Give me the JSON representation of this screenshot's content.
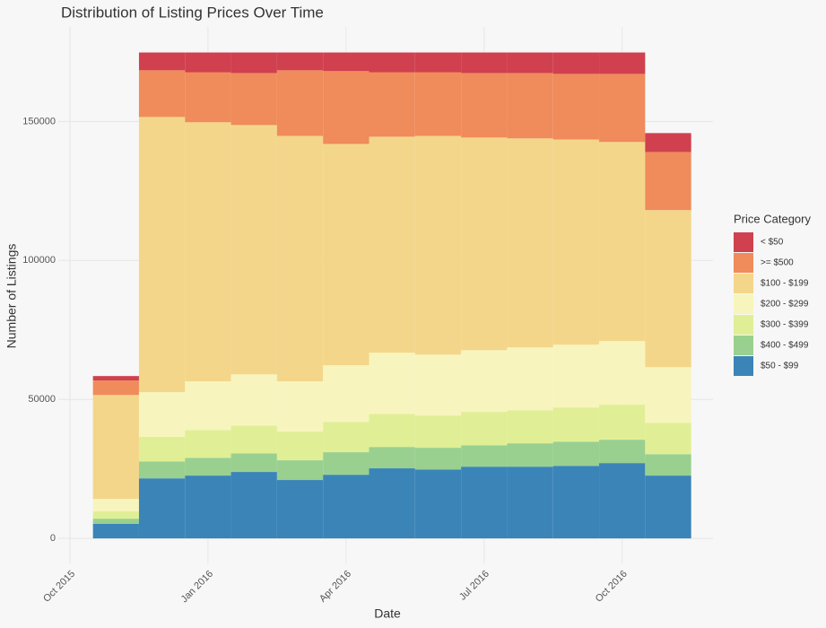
{
  "chart_data": {
    "type": "stacked_bar",
    "title": "Distribution of Listing Prices Over Time",
    "x_label": "Date",
    "y_label": "Number of Listings",
    "legend_title": "Price Category",
    "legend_position": "right",
    "grid": true,
    "x": [
      "2015-11",
      "2015-12",
      "2016-01",
      "2016-02",
      "2016-03",
      "2016-04",
      "2016-05",
      "2016-06",
      "2016-07",
      "2016-08",
      "2016-09",
      "2016-10",
      "2016-11"
    ],
    "xlim": [
      "2015-10",
      "2016-11"
    ],
    "xticks": [
      {
        "value": "2015-10",
        "label": "Oct 2015"
      },
      {
        "value": "2016-01",
        "label": "Jan 2016"
      },
      {
        "value": "2016-04",
        "label": "Apr 2016"
      },
      {
        "value": "2016-07",
        "label": "Jul 2016"
      },
      {
        "value": "2016-10",
        "label": "Oct 2016"
      }
    ],
    "ylim": [
      -9000,
      184000
    ],
    "yticks": [
      0,
      50000,
      100000,
      150000
    ],
    "series": [
      {
        "name": "< $50",
        "color": "#d0404f",
        "values": [
          1600,
          6400,
          7100,
          7400,
          6400,
          6700,
          7100,
          7100,
          7400,
          7400,
          7700,
          7700,
          6800
        ]
      },
      {
        "name": ">= $500",
        "color": "#f08b5b",
        "values": [
          5200,
          16800,
          18000,
          18700,
          23600,
          26200,
          23200,
          22900,
          23200,
          23500,
          23600,
          24500,
          20900
        ]
      },
      {
        "name": "$100 - $199",
        "color": "#f4d68a",
        "values": [
          37400,
          99000,
          93200,
          89700,
          88300,
          79600,
          77700,
          78700,
          76500,
          75200,
          73800,
          71600,
          56500
        ]
      },
      {
        "name": "$200 - $299",
        "color": "#f7f5bd",
        "values": [
          4500,
          16100,
          17500,
          18400,
          18100,
          20400,
          22000,
          21900,
          22200,
          22600,
          22600,
          22900,
          20000
        ]
      },
      {
        "name": "$300 - $399",
        "color": "#e0ef95",
        "values": [
          2600,
          8800,
          10000,
          10000,
          10300,
          10900,
          11900,
          11600,
          12000,
          11900,
          12300,
          12600,
          11300
        ]
      },
      {
        "name": "$400 - $499",
        "color": "#99d08f",
        "values": [
          1900,
          6100,
          6400,
          6700,
          7100,
          8100,
          7700,
          7800,
          7700,
          8400,
          8700,
          8400,
          7700
        ]
      },
      {
        "name": "$50 - $99",
        "color": "#3a84b8",
        "values": [
          5200,
          21600,
          22600,
          23900,
          21000,
          22900,
          25200,
          24800,
          25800,
          25800,
          26100,
          27100,
          22600
        ]
      }
    ]
  }
}
